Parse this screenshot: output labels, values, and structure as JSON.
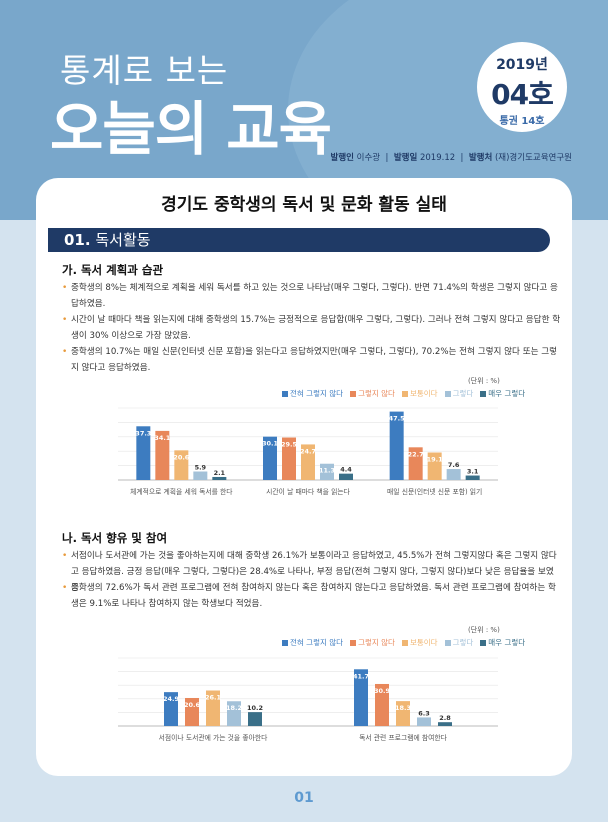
{
  "masthead": {
    "title_small": "통계로 보는",
    "title_large": "오늘의 교육",
    "year": "2019년",
    "issue": "04호",
    "volume": "통권 14호",
    "publisher_label": "발행인",
    "publisher": "이수광",
    "date_label": "발행일",
    "date": "2019.12",
    "org_label": "발행처",
    "org": "(재)경기도교육연구원"
  },
  "main_title": "경기도 중학생의 독서 및 문화 활동 실태",
  "section": {
    "number": "01.",
    "title": "독서활동"
  },
  "sub_a": {
    "title": "가. 독서 계획과 습관",
    "bullets": [
      "중학생의 8%는 체계적으로 계획을 세워 독서를 하고 있는 것으로 나타남(매우 그렇다, 그렇다). 반면 71.4%의 학생은 그렇지 않다고 응답하였음.",
      "시간이 날 때마다 책을 읽는지에 대해 중학생의 15.7%는 긍정적으로 응답함(매우 그렇다, 그렇다). 그러나 전혀 그렇지 않다고 응답한 학생이 30% 이상으로 가장 많았음.",
      "중학생의 10.7%는 매일 신문(인터넷 신문 포함)을 읽는다고 응답하였지만(매우 그렇다, 그렇다), 70.2%는 전혀 그렇지 않다 또는 그렇지 않다고 응답하였음."
    ]
  },
  "sub_b": {
    "title": "나. 독서 향유 및 참여",
    "bullets": [
      "서점이나 도서관에 가는 것을 좋아하는지에 대해 중학생 26.1%가 보통이라고 응답하였고, 45.5%가 전혀 그렇지않다 혹은 그렇지 않다고 응답하였음. 긍정 응답(매우 그렇다, 그렇다)은 28.4%로 나타나, 부정 응답(전혀 그렇지 않다, 그렇지 않다)보다 낮은 응답율을 보였음.",
      "중학생의 72.6%가 독서 관련 프로그램에 전혀 참여하지 않는다 혹은 참여하지 않는다고 응답하였음. 독서 관련 프로그램에 참여하는 학생은 9.1%로 나타나 참여하지 않는 학생보다 적었음."
    ]
  },
  "chart_common": {
    "unit": "(단위 : %)",
    "series_names": [
      "전혀 그렇지 않다",
      "그렇지 않다",
      "보통이다",
      "그렇다",
      "매우 그렇다"
    ],
    "colors": [
      "#3d7cc0",
      "#e8875a",
      "#f0b672",
      "#a3c1d8",
      "#3a6f88"
    ]
  },
  "chart_data": [
    {
      "type": "bar",
      "categories": [
        "체계적으로 계획을 세워 독서를 한다",
        "시간이 날 때마다 책을 읽는다",
        "매일 신문(인터넷 신문 포함) 읽기"
      ],
      "series": [
        {
          "name": "전혀 그렇지 않다",
          "values": [
            37.3,
            30.1,
            47.5
          ]
        },
        {
          "name": "그렇지 않다",
          "values": [
            34.1,
            29.5,
            22.7
          ]
        },
        {
          "name": "보통이다",
          "values": [
            20.6,
            24.7,
            19.1
          ]
        },
        {
          "name": "그렇다",
          "values": [
            5.9,
            11.3,
            7.6
          ]
        },
        {
          "name": "매우 그렇다",
          "values": [
            2.1,
            4.4,
            3.1
          ]
        }
      ],
      "ylim": [
        0,
        50
      ],
      "grid": true,
      "legend": "top-right"
    },
    {
      "type": "bar",
      "categories": [
        "서점이나 도서관에 가는 것을 좋아한다",
        "독서 관련 프로그램에 참여한다"
      ],
      "series": [
        {
          "name": "전혀 그렇지 않다",
          "values": [
            24.9,
            41.7
          ]
        },
        {
          "name": "그렇지 않다",
          "values": [
            20.6,
            30.9
          ]
        },
        {
          "name": "보통이다",
          "values": [
            26.1,
            18.3
          ]
        },
        {
          "name": "그렇다",
          "values": [
            18.2,
            6.3
          ]
        },
        {
          "name": "매우 그렇다",
          "values": [
            10.2,
            2.8
          ]
        }
      ],
      "ylim": [
        0,
        50
      ],
      "grid": true,
      "legend": "top-right"
    }
  ],
  "page_number": "01"
}
